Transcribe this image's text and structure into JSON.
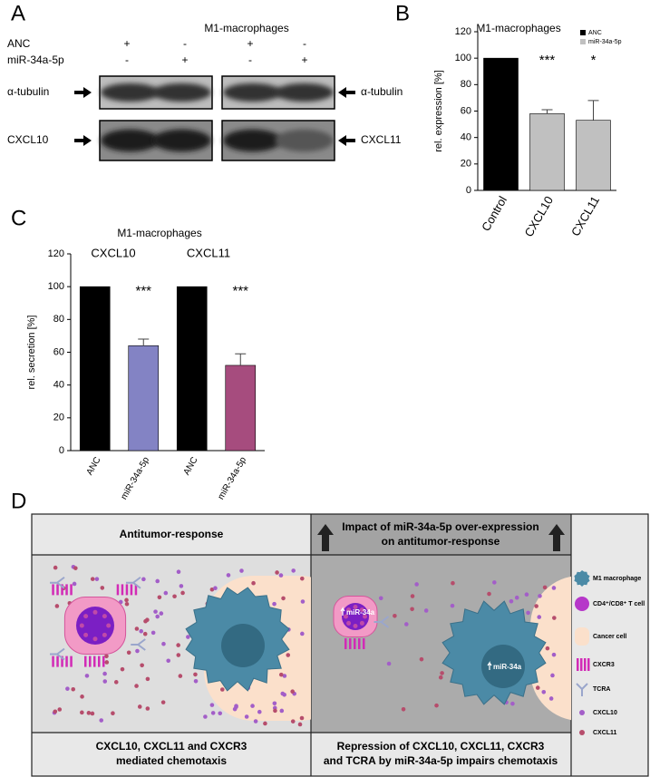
{
  "panel_labels": [
    "A",
    "B",
    "C",
    "D"
  ],
  "blot": {
    "title": "M1-macrophages",
    "conditions": [
      {
        "name": "ANC",
        "signs": [
          "+",
          "-",
          "+",
          "-"
        ]
      },
      {
        "name": "miR-34a-5p",
        "signs": [
          "-",
          "+",
          "-",
          "+"
        ]
      }
    ],
    "rows": [
      {
        "left": "α-tubulin",
        "right": "α-tubulin"
      },
      {
        "left": "CXCL10",
        "right": "CXCL11"
      }
    ]
  },
  "chart_data": [
    {
      "type": "bar",
      "title": "M1-macrophages",
      "ylabel": "rel. expression [%]",
      "categories": [
        "Control",
        "CXCL10",
        "CXCL11"
      ],
      "series": [
        {
          "name": "ANC",
          "color": "#000000",
          "values": [
            100,
            null,
            null
          ],
          "errors": [
            null,
            null,
            null
          ]
        },
        {
          "name": "miR-34a-5p",
          "color": "#c0c0c0",
          "values": [
            null,
            58,
            53
          ],
          "errors": [
            null,
            3,
            15
          ]
        }
      ],
      "significance": [
        null,
        "***",
        "*"
      ],
      "ylim": [
        0,
        120
      ],
      "yticks": [
        0,
        20,
        40,
        60,
        80,
        100,
        120
      ],
      "legend": "upper right"
    },
    {
      "type": "bar",
      "title": "M1-macrophages",
      "groups": [
        "CXCL10",
        "CXCL11"
      ],
      "ylabel": "rel. secretion [%]",
      "categories": [
        "ANC",
        "miR-34a-5p",
        "ANC",
        "miR-34a-5p"
      ],
      "values": [
        100,
        64,
        100,
        52
      ],
      "errors": [
        null,
        4,
        null,
        7
      ],
      "colors": [
        "#000000",
        "#8383c4",
        "#000000",
        "#a64c7e"
      ],
      "significance": [
        null,
        "***",
        null,
        "***"
      ],
      "ylim": [
        0,
        120
      ],
      "yticks": [
        0,
        20,
        40,
        60,
        80,
        100,
        120
      ]
    }
  ],
  "diagram": {
    "left": {
      "header": [
        "Antitumor-response"
      ],
      "footer": [
        "CXCL10, CXCL11 and CXCR3",
        "mediated chemotaxis"
      ]
    },
    "right": {
      "header": [
        "Impact of miR-34a-5p over-expression",
        "on antitumor-response"
      ],
      "footer": [
        "Repression of CXCL10, CXCL11, CXCR3",
        "and TCRA by miR-34a-5p impairs chemotaxis"
      ],
      "cell_labels": [
        "miR-34a",
        "miR-34a"
      ]
    },
    "legend": [
      "M1 macrophage",
      "CD4⁺/CD8⁺ T cell",
      "Cancer cell",
      "CXCR3",
      "TCRA",
      "CXCL10",
      "CXCL11"
    ]
  }
}
